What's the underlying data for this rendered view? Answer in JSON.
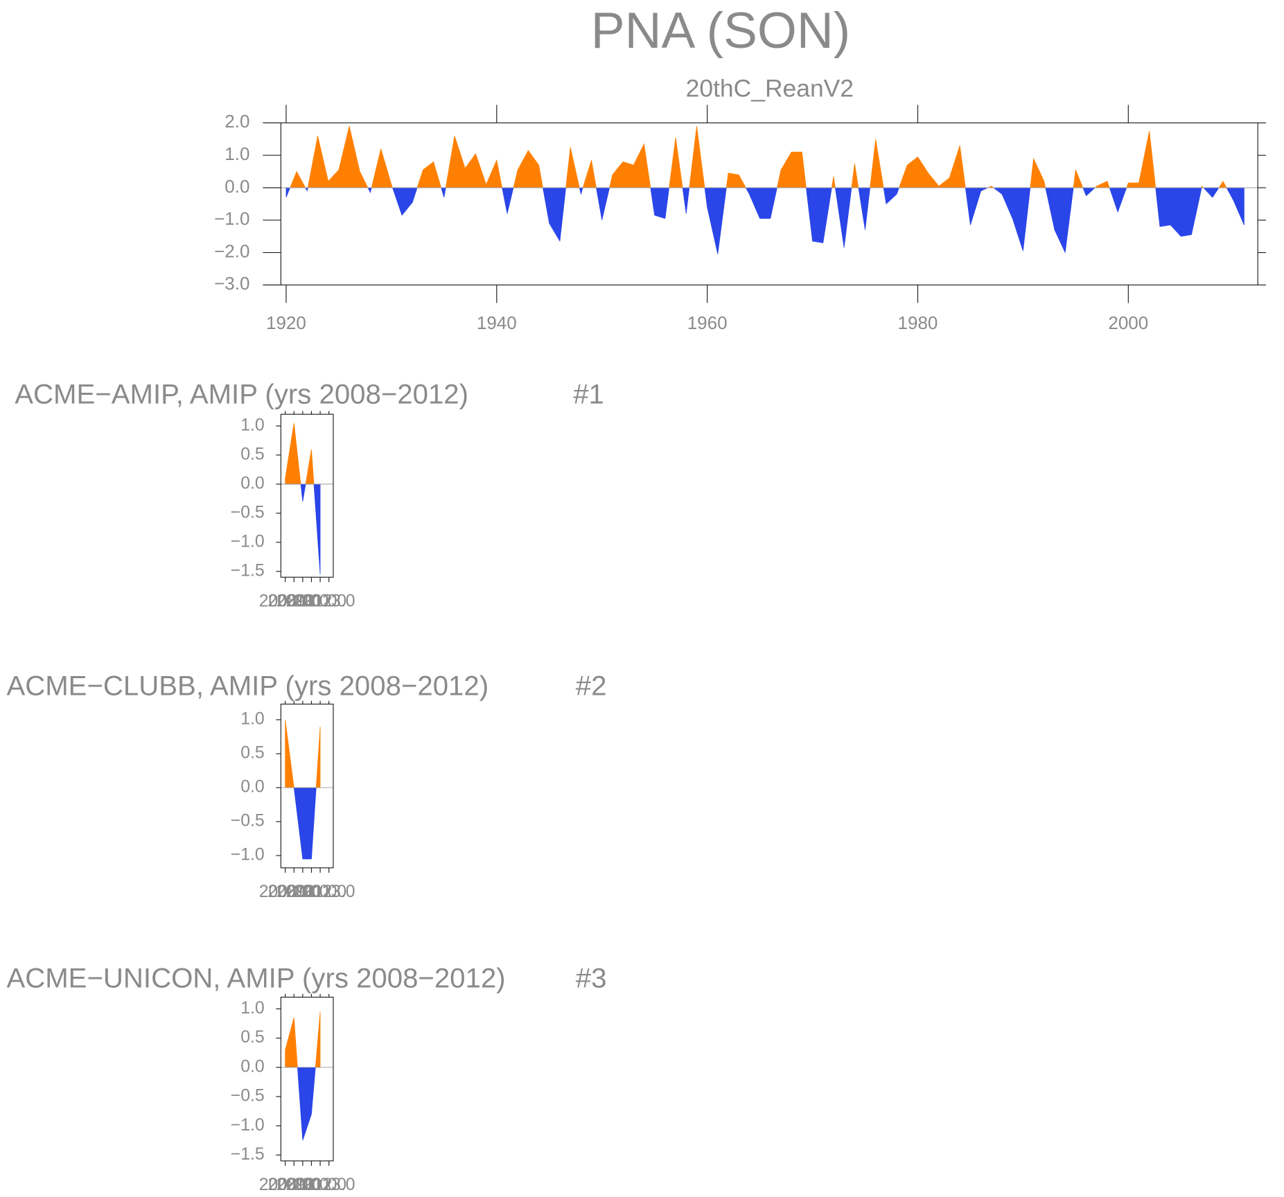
{
  "chart_data": [
    {
      "type": "area",
      "title": "PNA (SON)",
      "subtitle": "20thC_ReanV2",
      "positive_color": "#ff8000",
      "negative_color": "#2a45e8",
      "x": [
        1920,
        1921,
        1922,
        1923,
        1924,
        1925,
        1926,
        1927,
        1928,
        1929,
        1930,
        1931,
        1932,
        1933,
        1934,
        1935,
        1936,
        1937,
        1938,
        1939,
        1940,
        1941,
        1942,
        1943,
        1944,
        1945,
        1946,
        1947,
        1948,
        1949,
        1950,
        1951,
        1952,
        1953,
        1954,
        1955,
        1956,
        1957,
        1958,
        1959,
        1960,
        1961,
        1962,
        1963,
        1964,
        1965,
        1966,
        1967,
        1968,
        1969,
        1970,
        1971,
        1972,
        1973,
        1974,
        1975,
        1976,
        1977,
        1978,
        1979,
        1980,
        1981,
        1982,
        1983,
        1984,
        1985,
        1986,
        1987,
        1988,
        1989,
        1990,
        1991,
        1992,
        1993,
        1994,
        1995,
        1996,
        1997,
        1998,
        1999,
        2000,
        2001,
        2002,
        2003,
        2004,
        2005,
        2006,
        2007,
        2008,
        2009,
        2010,
        2011
      ],
      "values": [
        -0.3,
        0.5,
        -0.1,
        1.6,
        0.2,
        0.55,
        1.9,
        0.5,
        -0.15,
        1.2,
        0.1,
        -0.85,
        -0.45,
        0.55,
        0.8,
        -0.3,
        1.6,
        0.6,
        1.05,
        0.1,
        0.85,
        -0.8,
        0.55,
        1.15,
        0.7,
        -1.1,
        -1.65,
        1.25,
        -0.2,
        0.85,
        -1.0,
        0.4,
        0.8,
        0.7,
        1.35,
        -0.85,
        -0.95,
        1.55,
        -0.8,
        1.9,
        -0.6,
        -2.05,
        0.45,
        0.4,
        -0.2,
        -0.95,
        -0.95,
        0.55,
        1.1,
        1.1,
        -1.65,
        -1.7,
        0.35,
        -1.85,
        0.75,
        -1.3,
        1.5,
        -0.5,
        -0.2,
        0.7,
        0.95,
        0.45,
        0.05,
        0.3,
        1.3,
        -1.15,
        -0.1,
        0.05,
        -0.2,
        -0.95,
        -1.95,
        0.9,
        0.2,
        -1.3,
        -2.0,
        0.55,
        -0.25,
        0.05,
        0.2,
        -0.75,
        0.15,
        0.15,
        1.75,
        -1.2,
        -1.15,
        -1.5,
        -1.45,
        0.05,
        -0.3,
        0.2,
        -0.4,
        -1.15
      ],
      "xlim": [
        1919.5,
        2012.3
      ],
      "xticks": [
        1920,
        1940,
        1960,
        1980,
        2000
      ],
      "ylim": [
        -3,
        2
      ],
      "yticks": [
        {
          "value": -3,
          "label": "−3.0"
        },
        {
          "value": -2,
          "label": "−2.0"
        },
        {
          "value": -1,
          "label": "−1.0"
        },
        {
          "value": 0,
          "label": "0.0"
        },
        {
          "value": 1,
          "label": "1.0"
        },
        {
          "value": 2,
          "label": "2.0"
        }
      ]
    },
    {
      "type": "area",
      "title": "ACME−AMIP, AMIP (yrs 2008−2012)",
      "annotation": "#1",
      "positive_color": "#ff8000",
      "negative_color": "#2a45e8",
      "x": [
        2008,
        2009,
        2010,
        2011,
        2012
      ],
      "values": [
        0.1,
        1.05,
        -0.3,
        0.6,
        -1.55
      ],
      "xlim": [
        2007.5,
        2013.5
      ],
      "xticks": [
        {
          "value": 2008,
          "label": "2008.0"
        },
        {
          "value": 2009,
          "label": "2009.0"
        },
        {
          "value": 2010,
          "label": "2010.0"
        },
        {
          "value": 2011,
          "label": "2011.0"
        },
        {
          "value": 2012,
          "label": "2012.0"
        },
        {
          "value": 2013,
          "label": "2013.0"
        }
      ],
      "ylim": [
        -1.6,
        1.2
      ],
      "yticks": [
        {
          "value": -1.5,
          "label": "−1.5"
        },
        {
          "value": -1,
          "label": "−1.0"
        },
        {
          "value": -0.5,
          "label": "−0.5"
        },
        {
          "value": 0,
          "label": "0.0"
        },
        {
          "value": 0.5,
          "label": "0.5"
        },
        {
          "value": 1,
          "label": "1.0"
        }
      ]
    },
    {
      "type": "area",
      "title": "ACME−CLUBB, AMIP (yrs 2008−2012)",
      "annotation": "#2",
      "positive_color": "#ff8000",
      "negative_color": "#2a45e8",
      "x": [
        2008,
        2009,
        2010,
        2011,
        2012
      ],
      "values": [
        1.0,
        0.0,
        -1.05,
        -1.05,
        0.9
      ],
      "xlim": [
        2007.5,
        2013.5
      ],
      "xticks": [
        {
          "value": 2008,
          "label": "2008.0"
        },
        {
          "value": 2009,
          "label": "2009.0"
        },
        {
          "value": 2010,
          "label": "2010.0"
        },
        {
          "value": 2011,
          "label": "2011.0"
        },
        {
          "value": 2012,
          "label": "2012.0"
        },
        {
          "value": 2013,
          "label": "2013.0"
        }
      ],
      "ylim": [
        -1.18,
        1.23
      ],
      "yticks": [
        {
          "value": -1,
          "label": "−1.0"
        },
        {
          "value": -0.5,
          "label": "−0.5"
        },
        {
          "value": 0,
          "label": "0.0"
        },
        {
          "value": 0.5,
          "label": "0.5"
        },
        {
          "value": 1,
          "label": "1.0"
        }
      ]
    },
    {
      "type": "area",
      "title": "ACME−UNICON, AMIP (yrs 2008−2012)",
      "annotation": "#3",
      "positive_color": "#ff8000",
      "negative_color": "#2a45e8",
      "x": [
        2008,
        2009,
        2010,
        2011,
        2012
      ],
      "values": [
        0.3,
        0.85,
        -1.25,
        -0.8,
        0.95
      ],
      "xlim": [
        2007.5,
        2013.5
      ],
      "xticks": [
        {
          "value": 2008,
          "label": "2008.0"
        },
        {
          "value": 2009,
          "label": "2009.0"
        },
        {
          "value": 2010,
          "label": "2010.0"
        },
        {
          "value": 2011,
          "label": "2011.0"
        },
        {
          "value": 2012,
          "label": "2012.0"
        },
        {
          "value": 2013,
          "label": "2013.0"
        }
      ],
      "ylim": [
        -1.6,
        1.2
      ],
      "yticks": [
        {
          "value": -1.5,
          "label": "−1.5"
        },
        {
          "value": -1,
          "label": "−1.0"
        },
        {
          "value": -0.5,
          "label": "−0.5"
        },
        {
          "value": 0,
          "label": "0.0"
        },
        {
          "value": 0.5,
          "label": "0.5"
        },
        {
          "value": 1,
          "label": "1.0"
        }
      ]
    }
  ]
}
